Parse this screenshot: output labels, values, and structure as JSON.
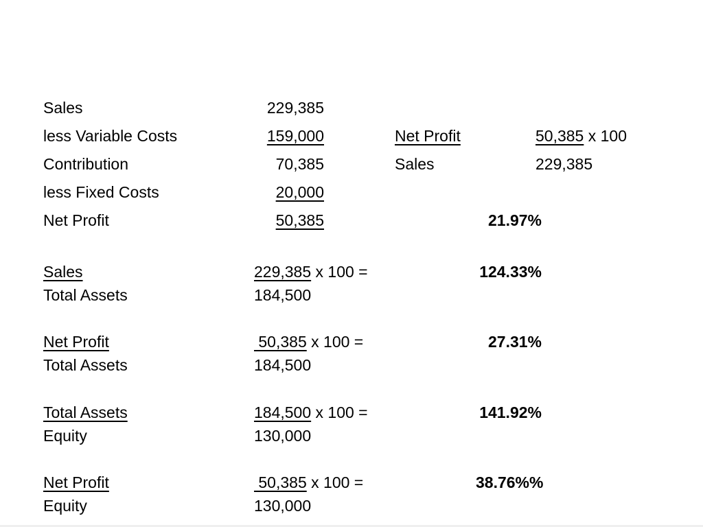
{
  "income_statement": {
    "rows": [
      {
        "label": "Sales",
        "value": "229,385"
      },
      {
        "label": "less Variable Costs",
        "value": "159,000"
      },
      {
        "label": "Contribution",
        "value": "70,385"
      },
      {
        "label": "less Fixed Costs",
        "value": "20,000"
      },
      {
        "label": "Net Profit",
        "value": "50,385"
      }
    ]
  },
  "net_profit_margin": {
    "numerator_label": "Net Profit",
    "numerator_value": "50,385",
    "multiplier": "x 100",
    "denominator_label": "Sales",
    "denominator_value": "229,385",
    "result": "21.97%"
  },
  "ratios": [
    {
      "numerator_label": "Sales",
      "numerator_value": "229,385",
      "operator": "x 100 =",
      "result": "124.33%",
      "denominator_label": "Total Assets",
      "denominator_value": "184,500"
    },
    {
      "numerator_label": "Net Profit",
      "numerator_value": " 50,385",
      "operator": "x 100 =",
      "result": "27.31%",
      "denominator_label": "Total Assets",
      "denominator_value": "184,500"
    },
    {
      "numerator_label": "Total Assets",
      "numerator_value": "184,500",
      "operator": "x 100 =",
      "result": "141.92%",
      "denominator_label": "Equity",
      "denominator_value": "130,000"
    },
    {
      "numerator_label": "Net Profit",
      "numerator_value": " 50,385",
      "operator": "x 100 =",
      "result": "38.76%%",
      "denominator_label": "Equity",
      "denominator_value": "130,000"
    }
  ]
}
